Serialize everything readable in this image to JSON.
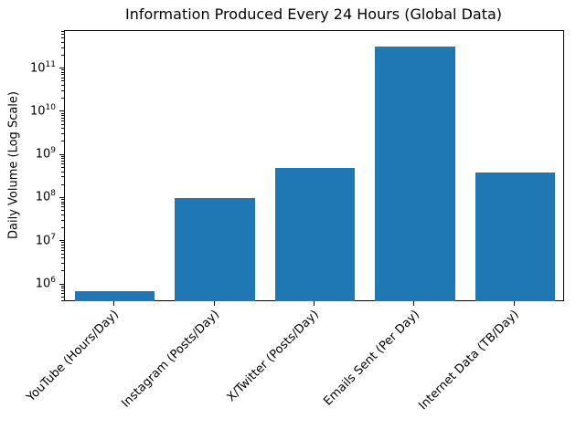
{
  "chart_data": {
    "type": "bar",
    "title": "Information Produced Every 24 Hours (Global Data)",
    "ylabel": "Daily Volume (Log Scale)",
    "xlabel": "",
    "categories": [
      "YouTube (Hours/Day)",
      "Instagram (Posts/Day)",
      "X/Twitter (Posts/Day)",
      "Emails Sent (Per Day)",
      "Internet Data (TB/Day)"
    ],
    "values": [
      720000,
      100000000,
      500000000,
      333000000000,
      400000000
    ],
    "yscale": "log",
    "ylim_log": [
      5.6,
      11.88
    ],
    "ytick_labels": [
      "10^6",
      "10^7",
      "10^8",
      "10^9",
      "10^10",
      "10^11"
    ],
    "bar_color": "#1f77b4",
    "bar_width_fraction": 0.8,
    "grid": false,
    "legend_position": "none",
    "x_tick_rotation_deg": 45
  }
}
